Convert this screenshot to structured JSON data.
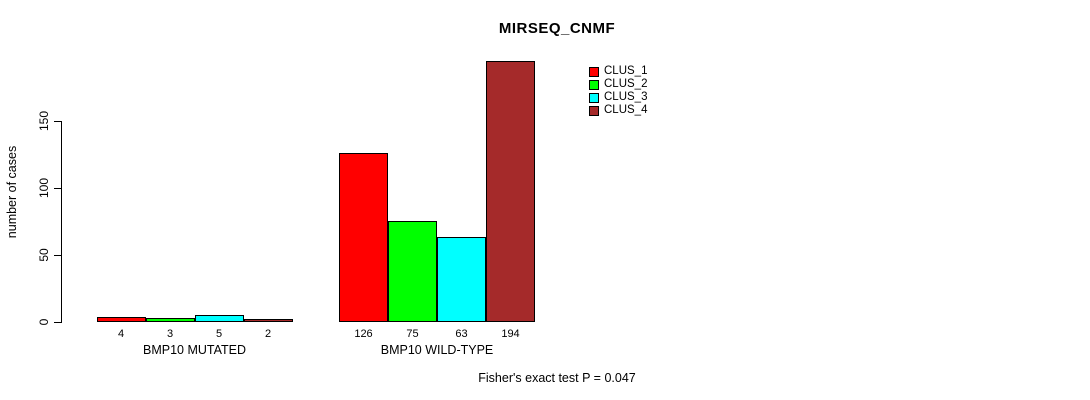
{
  "chart_data": {
    "type": "bar",
    "title": "MIRSEQ_CNMF",
    "xlabel": "",
    "ylabel": "number of cases",
    "ylim": [
      0,
      150
    ],
    "yticks": [
      0,
      50,
      100,
      150
    ],
    "grid": false,
    "legend_position": "top-right",
    "bar_value_labels_shown": true,
    "categories": [
      "BMP10 MUTATED",
      "BMP10 WILD-TYPE"
    ],
    "series": [
      {
        "name": "CLUS_1",
        "color": "#FF0000",
        "values": [
          4,
          126
        ]
      },
      {
        "name": "CLUS_2",
        "color": "#00FF00",
        "values": [
          3,
          75
        ]
      },
      {
        "name": "CLUS_3",
        "color": "#00FFFF",
        "values": [
          5,
          63
        ]
      },
      {
        "name": "CLUS_4",
        "color": "#A52A2A",
        "values": [
          2,
          194
        ]
      }
    ],
    "annotation": "Fisher's exact test P = 0.047"
  },
  "colors": {
    "background": "#FFFFFF",
    "axis": "#000000",
    "bar_border": "#000000",
    "text": "#000000"
  }
}
